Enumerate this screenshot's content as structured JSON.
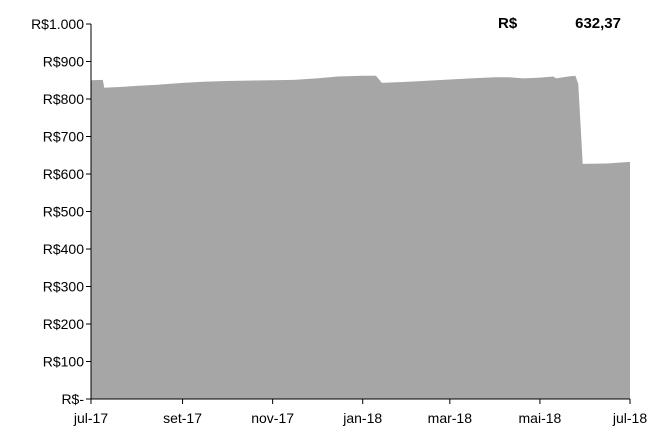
{
  "chart_data": {
    "type": "area",
    "title": "",
    "xlabel": "",
    "ylabel": "",
    "ylim": [
      0,
      1000
    ],
    "y_ticks": [
      0,
      100,
      200,
      300,
      400,
      500,
      600,
      700,
      800,
      900,
      1000
    ],
    "y_tick_labels": [
      "R$-",
      "R$100",
      "R$200",
      "R$300",
      "R$400",
      "R$500",
      "R$600",
      "R$700",
      "R$800",
      "R$900",
      "R$1.000"
    ],
    "x_range": [
      "2017-07-01",
      "2018-07-01"
    ],
    "x_tick_dates": [
      "2017-07-01",
      "2017-09-01",
      "2017-11-01",
      "2018-01-01",
      "2018-03-01",
      "2018-05-01",
      "2018-07-01"
    ],
    "x_tick_labels": [
      "jul-17",
      "set-17",
      "nov-17",
      "jan-18",
      "mar-18",
      "mai-18",
      "jul-18"
    ],
    "grid": false,
    "color": "#a6a6a6",
    "series": [
      {
        "points": [
          [
            "2017-07-01",
            850
          ],
          [
            "2017-07-09",
            851
          ],
          [
            "2017-07-10",
            830
          ],
          [
            "2017-07-20",
            832
          ],
          [
            "2017-08-01",
            835
          ],
          [
            "2017-08-15",
            838
          ],
          [
            "2017-09-01",
            843
          ],
          [
            "2017-09-15",
            846
          ],
          [
            "2017-10-01",
            848
          ],
          [
            "2017-10-15",
            849
          ],
          [
            "2017-11-01",
            850
          ],
          [
            "2017-11-15",
            851
          ],
          [
            "2017-12-01",
            855
          ],
          [
            "2017-12-15",
            860
          ],
          [
            "2018-01-01",
            862
          ],
          [
            "2018-01-10",
            862
          ],
          [
            "2018-01-14",
            843
          ],
          [
            "2018-02-01",
            846
          ],
          [
            "2018-02-15",
            849
          ],
          [
            "2018-03-01",
            852
          ],
          [
            "2018-03-15",
            855
          ],
          [
            "2018-04-01",
            858
          ],
          [
            "2018-04-10",
            858
          ],
          [
            "2018-04-20",
            855
          ],
          [
            "2018-05-01",
            857
          ],
          [
            "2018-05-10",
            860
          ],
          [
            "2018-05-12",
            855
          ],
          [
            "2018-05-20",
            860
          ],
          [
            "2018-05-25",
            862
          ],
          [
            "2018-05-27",
            840
          ],
          [
            "2018-05-30",
            627
          ],
          [
            "2018-06-15",
            628
          ],
          [
            "2018-07-01",
            632.37
          ]
        ]
      }
    ],
    "annotation": {
      "currency": "R$",
      "value": "632,37"
    }
  }
}
